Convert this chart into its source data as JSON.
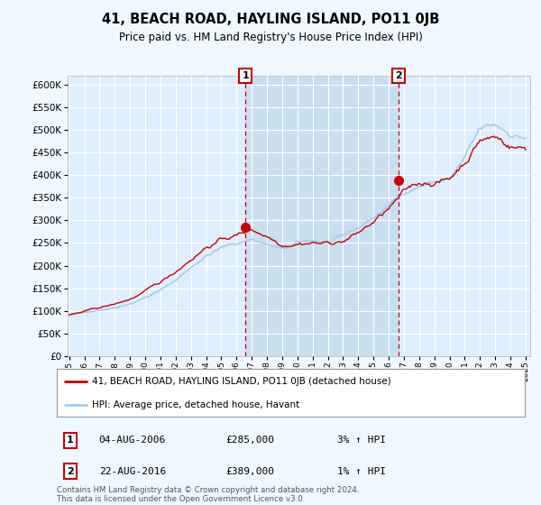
{
  "title": "41, BEACH ROAD, HAYLING ISLAND, PO11 0JB",
  "subtitle": "Price paid vs. HM Land Registry's House Price Index (HPI)",
  "legend_line1": "41, BEACH ROAD, HAYLING ISLAND, PO11 0JB (detached house)",
  "legend_line2": "HPI: Average price, detached house, Havant",
  "annotation1_date": "04-AUG-2006",
  "annotation1_price": "£285,000",
  "annotation1_hpi": "3% ↑ HPI",
  "annotation1_year": 2006.59,
  "annotation1_value": 285000,
  "annotation2_date": "22-AUG-2016",
  "annotation2_price": "£389,000",
  "annotation2_hpi": "1% ↑ HPI",
  "annotation2_year": 2016.64,
  "annotation2_value": 389000,
  "footer": "Contains HM Land Registry data © Crown copyright and database right 2024.\nThis data is licensed under the Open Government Licence v3.0.",
  "ylim": [
    0,
    620000
  ],
  "yticks": [
    0,
    50000,
    100000,
    150000,
    200000,
    250000,
    300000,
    350000,
    400000,
    450000,
    500000,
    550000,
    600000
  ],
  "xlim_start": 1994.9,
  "xlim_end": 2025.3,
  "line_color_hpi": "#a8cce8",
  "line_color_price": "#cc0000",
  "background_color": "#f0f8ff",
  "plot_bg_color": "#ddeeff",
  "shade_color": "#c8dff0",
  "grid_color": "#ffffff",
  "annotation_box_color": "#cc0000"
}
